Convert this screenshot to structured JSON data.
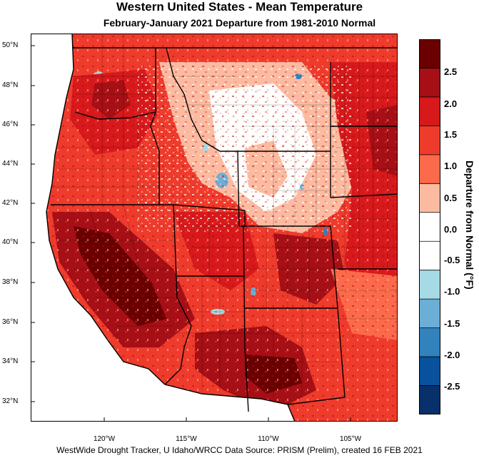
{
  "title": "Western United States - Mean Temperature",
  "subtitle": "February-January 2021  Departure from 1981-2010 Normal",
  "lat_labels": [
    "50°N",
    "48°N",
    "46°N",
    "44°N",
    "42°N",
    "40°N",
    "38°N",
    "36°N",
    "34°N",
    "32°N"
  ],
  "lon_labels": [
    "120°W",
    "115°W",
    "110°W",
    "105°W"
  ],
  "colorbar": {
    "title": "Departure from Normal (°F)",
    "tick_labels": [
      "2.5",
      "2.0",
      "1.5",
      "1.0",
      "0.5",
      "0.0",
      "-0.5",
      "-1.0",
      "-1.5",
      "-2.0",
      "-2.5"
    ],
    "colors": [
      "#6b0000",
      "#a50f15",
      "#d7191c",
      "#ef3b2c",
      "#fb6a4a",
      "#fcbba1",
      "#ffffff",
      "#ffffff",
      "#a6dbe6",
      "#6baed6",
      "#3182bd",
      "#08519c",
      "#08306b"
    ]
  },
  "footer": "WestWide Drought Tracker, U Idaho/WRCC Data Source: PRISM (Prelim), created 16 FEB 2021"
}
